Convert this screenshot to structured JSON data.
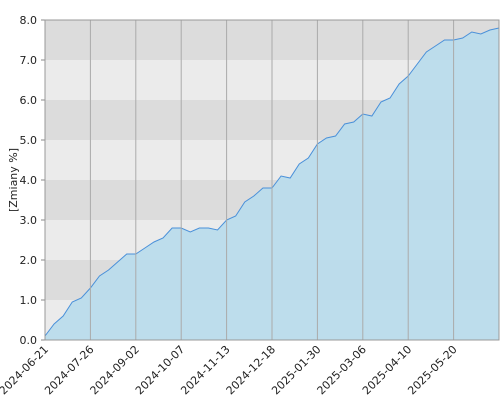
{
  "chart_data": {
    "type": "area",
    "y_label": "[Zmiany %]",
    "x": [
      "2024-06-21",
      "2024-06-28",
      "2024-07-05",
      "2024-07-12",
      "2024-07-19",
      "2024-07-26",
      "2024-08-02",
      "2024-08-09",
      "2024-08-16",
      "2024-08-23",
      "2024-09-02",
      "2024-09-09",
      "2024-09-16",
      "2024-09-23",
      "2024-09-30",
      "2024-10-07",
      "2024-10-14",
      "2024-10-21",
      "2024-10-28",
      "2024-11-05",
      "2024-11-13",
      "2024-11-20",
      "2024-11-27",
      "2024-12-04",
      "2024-12-11",
      "2024-12-18",
      "2024-12-27",
      "2025-01-08",
      "2025-01-15",
      "2025-01-22",
      "2025-01-30",
      "2025-02-06",
      "2025-02-13",
      "2025-02-20",
      "2025-02-27",
      "2025-03-06",
      "2025-03-13",
      "2025-03-20",
      "2025-03-27",
      "2025-04-03",
      "2025-04-10",
      "2025-04-17",
      "2025-04-28",
      "2025-05-06",
      "2025-05-13",
      "2025-05-20",
      "2025-05-27",
      "2025-06-03",
      "2025-06-10",
      "2025-06-17",
      "2025-06-24"
    ],
    "series": [
      {
        "color": "#4a90d9",
        "fill": "#b8dcec",
        "values": [
          0.1,
          0.4,
          0.6,
          0.95,
          1.05,
          1.3,
          1.6,
          1.75,
          1.95,
          2.15,
          2.15,
          2.3,
          2.45,
          2.55,
          2.8,
          2.8,
          2.7,
          2.8,
          2.8,
          2.75,
          3.0,
          3.1,
          3.45,
          3.6,
          3.8,
          3.8,
          4.1,
          4.05,
          4.4,
          4.55,
          4.9,
          5.05,
          5.1,
          5.4,
          5.45,
          5.65,
          5.6,
          5.95,
          6.05,
          6.4,
          6.6,
          6.9,
          7.2,
          7.35,
          7.5,
          7.5,
          7.55,
          7.7,
          7.65,
          7.75,
          7.8
        ]
      }
    ],
    "xticks": [
      "2024-06-21",
      "2024-07-26",
      "2024-09-02",
      "2024-10-07",
      "2024-11-13",
      "2024-12-18",
      "2025-01-30",
      "2025-03-06",
      "2025-04-10",
      "2025-05-20"
    ],
    "ylim": [
      0,
      8
    ],
    "yticks": [
      {
        "value": 0,
        "label": "0.0"
      },
      {
        "value": 1,
        "label": "1.0"
      },
      {
        "value": 2,
        "label": "2.0"
      },
      {
        "value": 3,
        "label": "3.0"
      },
      {
        "value": 4,
        "label": "4.0"
      },
      {
        "value": 5,
        "label": "5.0"
      },
      {
        "value": 6,
        "label": "6.0"
      },
      {
        "value": 7,
        "label": "7.0"
      },
      {
        "value": 8,
        "label": "8.0"
      }
    ],
    "grid": true
  }
}
